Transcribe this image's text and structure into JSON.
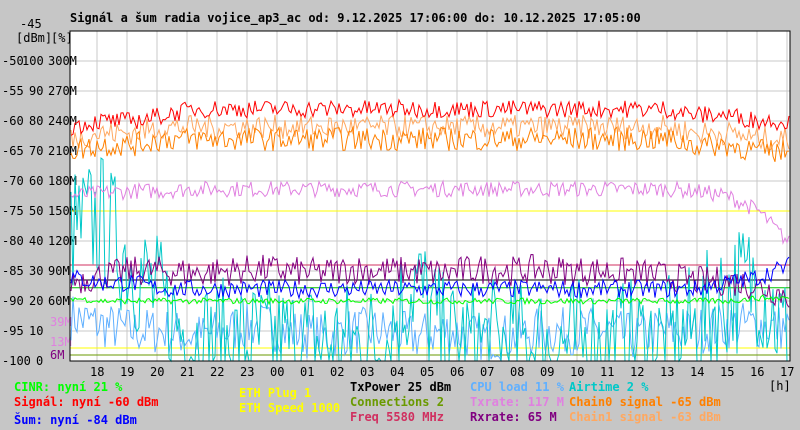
{
  "chart_data": {
    "type": "line",
    "title": "Signál a šum radia vojice_ap3_ac od: 9.12.2025 17:06:00 do: 10.12.2025 17:05:00",
    "xlabel": "[h]",
    "y_units": [
      "[dBm]",
      "[%]"
    ],
    "ylim_dbm": [
      -100,
      -45
    ],
    "ylim_pct": [
      0,
      110
    ],
    "ylim_rate_M": [
      0,
      330
    ],
    "y_ticks_dbm": [
      "-45",
      "-50",
      "-55",
      "-60",
      "-65",
      "-70",
      "-75",
      "-80",
      "-85",
      "-90",
      "-95",
      "-100"
    ],
    "y_ticks_pct": [
      "100",
      "90",
      "80",
      "70",
      "60",
      "50",
      "40",
      "30",
      "20",
      "10",
      "0"
    ],
    "y_ticks_rate": [
      "300M",
      "270M",
      "240M",
      "210M",
      "180M",
      "150M",
      "120M",
      "90M",
      "60M"
    ],
    "current_markers": [
      {
        "label": "39M",
        "value": 39,
        "color": "#e080e0"
      },
      {
        "label": "13M",
        "value": 13,
        "color": "#e080e0"
      },
      {
        "label": "6M",
        "value": 6,
        "color": "#800080"
      }
    ],
    "x_ticks": [
      "18",
      "19",
      "20",
      "21",
      "22",
      "23",
      "00",
      "01",
      "02",
      "03",
      "04",
      "05",
      "06",
      "07",
      "08",
      "09",
      "10",
      "11",
      "12",
      "13",
      "14",
      "15",
      "16",
      "17"
    ],
    "grid": true,
    "series": [
      {
        "name": "Signál",
        "unit": "dBm",
        "color": "#ff0000",
        "values": [
          -61,
          -60,
          -60,
          -59,
          -58,
          -58,
          -58,
          -58,
          -58,
          -58,
          -58,
          -58,
          -58,
          -58,
          -58,
          -58,
          -58,
          -58,
          -58,
          -58,
          -59,
          -59,
          -60,
          -60
        ]
      },
      {
        "name": "Chain0 signal",
        "unit": "dBm",
        "color": "#ff8000",
        "values": [
          -65,
          -64,
          -64,
          -63,
          -63,
          -63,
          -63,
          -63,
          -63,
          -63,
          -63,
          -63,
          -63,
          -63,
          -63,
          -63,
          -63,
          -63,
          -63,
          -63,
          -64,
          -64,
          -65,
          -65
        ]
      },
      {
        "name": "Chain1 signal",
        "unit": "dBm",
        "color": "#ffa860",
        "values": [
          -63,
          -62,
          -62,
          -61,
          -61,
          -61,
          -61,
          -61,
          -61,
          -61,
          -61,
          -61,
          -61,
          -61,
          -61,
          -61,
          -61,
          -61,
          -61,
          -61,
          -62,
          -62,
          -63,
          -63
        ]
      },
      {
        "name": "Šum",
        "unit": "dBm",
        "color": "#0000ff",
        "values": [
          -86,
          -87,
          -87,
          -88,
          -88,
          -88,
          -88,
          -88,
          -88,
          -88,
          -88,
          -88,
          -88,
          -88,
          -88,
          -88,
          -88,
          -88,
          -88,
          -88,
          -88,
          -87,
          -86,
          -84
        ]
      },
      {
        "name": "CINR",
        "unit": "%",
        "color": "#00ff00",
        "values": [
          21,
          20,
          20,
          20,
          20,
          20,
          20,
          20,
          20,
          20,
          20,
          20,
          20,
          20,
          20,
          20,
          20,
          20,
          20,
          20,
          20,
          20,
          21,
          21
        ]
      },
      {
        "name": "CPU load",
        "unit": "%",
        "color": "#60b0ff",
        "values": [
          15,
          12,
          10,
          10,
          8,
          10,
          12,
          10,
          8,
          10,
          10,
          8,
          10,
          8,
          8,
          10,
          10,
          10,
          8,
          10,
          10,
          12,
          12,
          11
        ]
      },
      {
        "name": "Airtime",
        "unit": "%",
        "color": "#00c8c8",
        "values": [
          40,
          45,
          30,
          15,
          4,
          3,
          3,
          3,
          3,
          3,
          3,
          25,
          3,
          3,
          3,
          3,
          3,
          3,
          3,
          3,
          8,
          20,
          25,
          2
        ]
      },
      {
        "name": "Txrate",
        "unit": "M",
        "color": "#e080e0",
        "values": [
          165,
          168,
          170,
          170,
          172,
          172,
          172,
          172,
          172,
          172,
          172,
          172,
          172,
          172,
          172,
          172,
          172,
          172,
          172,
          172,
          170,
          165,
          150,
          117
        ]
      },
      {
        "name": "Rxrate",
        "unit": "M",
        "color": "#800080",
        "values": [
          80,
          85,
          90,
          90,
          88,
          90,
          92,
          90,
          88,
          92,
          90,
          90,
          88,
          92,
          90,
          92,
          90,
          90,
          88,
          85,
          80,
          80,
          75,
          65
        ]
      },
      {
        "name": "TxPower",
        "unit": "dBm",
        "color": "#000000",
        "values": [
          25
        ]
      },
      {
        "name": "ETH Speed",
        "unit": "M",
        "color": "#ffff00",
        "values": [
          1000
        ]
      },
      {
        "name": "Freq",
        "unit": "MHz",
        "color": "#d03060",
        "values": [
          5580
        ]
      },
      {
        "name": "Connections",
        "unit": "",
        "color": "#6a9a00",
        "values": [
          2
        ]
      }
    ]
  },
  "legend": {
    "cinr": "CINR: nyní 21 %",
    "signal": "Signál: nyní -60 dBm",
    "noise": "Šum: nyní -84 dBm",
    "eth_plug": "ETH Plug 1",
    "eth_speed": "ETH Speed 1000",
    "txpower": "TxPower 25 dBm",
    "connections": "Connections 2",
    "freq": "Freq 5580 MHz",
    "cpu": "CPU load 11 %",
    "txrate": "Txrate: 117 M",
    "rxrate": "Rxrate: 65 M",
    "airtime": "Airtime 2 %",
    "chain0": "Chain0 signal -65 dBm",
    "chain1": "Chain1 signal -63 dBm"
  }
}
